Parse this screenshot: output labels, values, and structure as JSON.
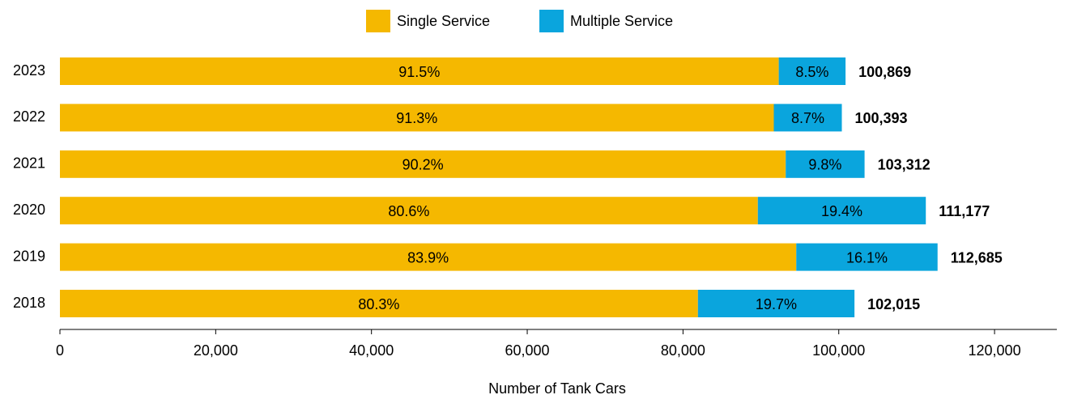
{
  "chart_data": {
    "type": "stacked-barh",
    "x_label": "Number of Tank Cars",
    "categories": [
      "2023",
      "2022",
      "2021",
      "2020",
      "2019",
      "2018"
    ],
    "series": [
      {
        "name": "Single Service",
        "color": "#f5b800",
        "values": [
          92295,
          91659,
          93187,
          89609,
          94543,
          81918
        ],
        "labels": [
          "91.5%",
          "91.3%",
          "90.2%",
          "80.6%",
          "83.9%",
          "80.3%"
        ]
      },
      {
        "name": "Multiple Service",
        "color": "#0aa5dd",
        "values": [
          8574,
          8734,
          10125,
          21568,
          18142,
          20097
        ],
        "labels": [
          "8.5%",
          "8.7%",
          "9.8%",
          "19.4%",
          "16.1%",
          "19.7%"
        ]
      }
    ],
    "totals": [
      100869,
      100393,
      103312,
      111177,
      112685,
      102015
    ],
    "total_labels": [
      "100,869",
      "100,393",
      "103,312",
      "111,177",
      "112,685",
      "102,015"
    ],
    "xlim": [
      0,
      128000
    ],
    "xticks": [
      0,
      {
        "value": 20000,
        "label": "20,000"
      },
      {
        "value": 40000,
        "label": "40,000"
      },
      {
        "value": 60000,
        "label": "60,000"
      },
      {
        "value": 80000,
        "label": "80,000"
      },
      {
        "value": 100000,
        "label": "100,000"
      },
      {
        "value": 120000,
        "label": "120,000"
      }
    ]
  }
}
